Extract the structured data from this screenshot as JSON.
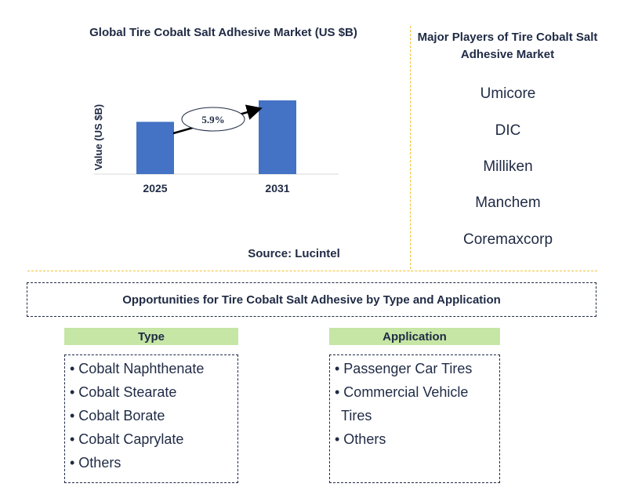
{
  "chart_data": {
    "type": "bar",
    "title": "Global Tire Cobalt Salt Adhesive Market (US $B)",
    "categories": [
      "2025",
      "2031"
    ],
    "values": [
      1.0,
      1.41
    ],
    "ylabel": "Value (US $B)",
    "xlabel": "",
    "grid": false,
    "annotation": "5.9%",
    "bar_color": "#4472c4",
    "ylim": [
      0,
      1.5
    ]
  },
  "source": "Source: Lucintel",
  "players": {
    "title": "Major Players of Tire Cobalt Salt Adhesive Market",
    "items": [
      "Umicore",
      "DIC",
      "Milliken",
      "Manchem",
      "Coremaxcorp"
    ]
  },
  "opportunities": {
    "title": "Opportunities for Tire Cobalt Salt Adhesive by Type and Application",
    "type": {
      "header": "Type",
      "items": [
        "• Cobalt Naphthenate",
        "• Cobalt Stearate",
        "• Cobalt Borate",
        "• Cobalt Caprylate",
        "• Others"
      ]
    },
    "application": {
      "header": "Application",
      "items": [
        "• Passenger Car Tires",
        "• Commercial Vehicle",
        "Tires",
        "• Others"
      ]
    }
  },
  "colors": {
    "text": "#1f2a44",
    "divider": "#f2c232",
    "header_fill": "#c6e6a5"
  }
}
